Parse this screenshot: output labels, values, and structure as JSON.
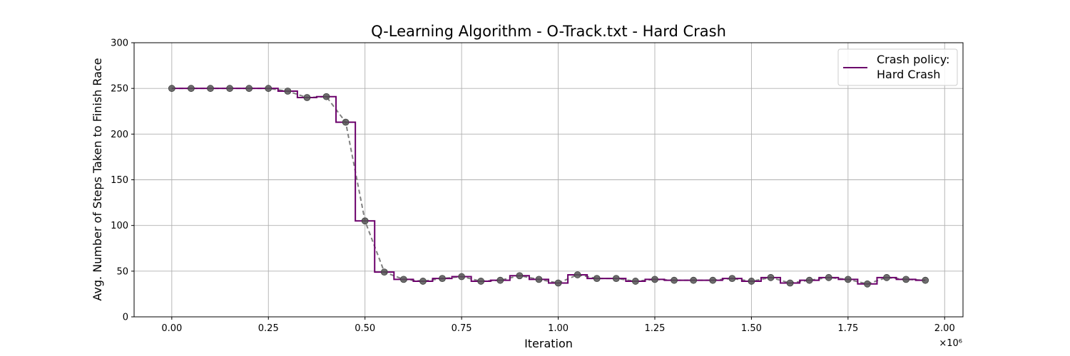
{
  "chart_data": {
    "type": "line",
    "title": "Q-Learning Algorithm - O-Track.txt - Hard Crash",
    "xlabel": "Iteration",
    "ylabel": "Avg. Number of Steps Taken to Finish Race",
    "x_offset_text": "×10⁶",
    "xlim": [
      -0.0975,
      2.0475
    ],
    "ylim": [
      0,
      300
    ],
    "x_ticks": [
      0.0,
      0.25,
      0.5,
      0.75,
      1.0,
      1.25,
      1.5,
      1.75,
      2.0
    ],
    "x_tick_labels": [
      "0.00",
      "0.25",
      "0.50",
      "0.75",
      "1.00",
      "1.25",
      "1.50",
      "1.75",
      "2.00"
    ],
    "y_ticks": [
      0,
      50,
      100,
      150,
      200,
      250,
      300
    ],
    "y_tick_labels": [
      "0",
      "50",
      "100",
      "150",
      "200",
      "250",
      "300"
    ],
    "grid": true,
    "legend": {
      "placement": "top-right",
      "label_line1": "Crash policy:",
      "label_line2": "Hard Crash"
    },
    "series": [
      {
        "name": "Crash policy: Hard Crash",
        "style": "step-mid",
        "color": "#6b006b",
        "x": [
          0.0,
          0.05,
          0.1,
          0.15,
          0.2,
          0.25,
          0.3,
          0.35,
          0.4,
          0.45,
          0.5,
          0.55,
          0.6,
          0.65,
          0.7,
          0.75,
          0.8,
          0.85,
          0.9,
          0.95,
          1.0,
          1.05,
          1.1,
          1.15,
          1.2,
          1.25,
          1.3,
          1.35,
          1.4,
          1.45,
          1.5,
          1.55,
          1.6,
          1.65,
          1.7,
          1.75,
          1.8,
          1.85,
          1.9,
          1.95
        ],
        "y": [
          250,
          250,
          250,
          250,
          250,
          250,
          247,
          240,
          241,
          213,
          105,
          49,
          41,
          39,
          42,
          44,
          39,
          40,
          45,
          41,
          37,
          46,
          42,
          42,
          39,
          41,
          40,
          40,
          40,
          42,
          39,
          43,
          37,
          40,
          43,
          41,
          36,
          43,
          41,
          40
        ]
      },
      {
        "style": "dashed-markers",
        "color": "#808080",
        "x": [
          0.0,
          0.05,
          0.1,
          0.15,
          0.2,
          0.25,
          0.3,
          0.35,
          0.4,
          0.45,
          0.5,
          0.55,
          0.6,
          0.65,
          0.7,
          0.75,
          0.8,
          0.85,
          0.9,
          0.95,
          1.0,
          1.05,
          1.1,
          1.15,
          1.2,
          1.25,
          1.3,
          1.35,
          1.4,
          1.45,
          1.5,
          1.55,
          1.6,
          1.65,
          1.7,
          1.75,
          1.8,
          1.85,
          1.9,
          1.95
        ],
        "y": [
          250,
          250,
          250,
          250,
          250,
          250,
          247,
          240,
          241,
          213,
          105,
          49,
          41,
          39,
          42,
          44,
          39,
          40,
          45,
          41,
          37,
          46,
          42,
          42,
          39,
          41,
          40,
          40,
          40,
          42,
          39,
          43,
          37,
          40,
          43,
          41,
          36,
          43,
          41,
          40
        ]
      }
    ]
  }
}
